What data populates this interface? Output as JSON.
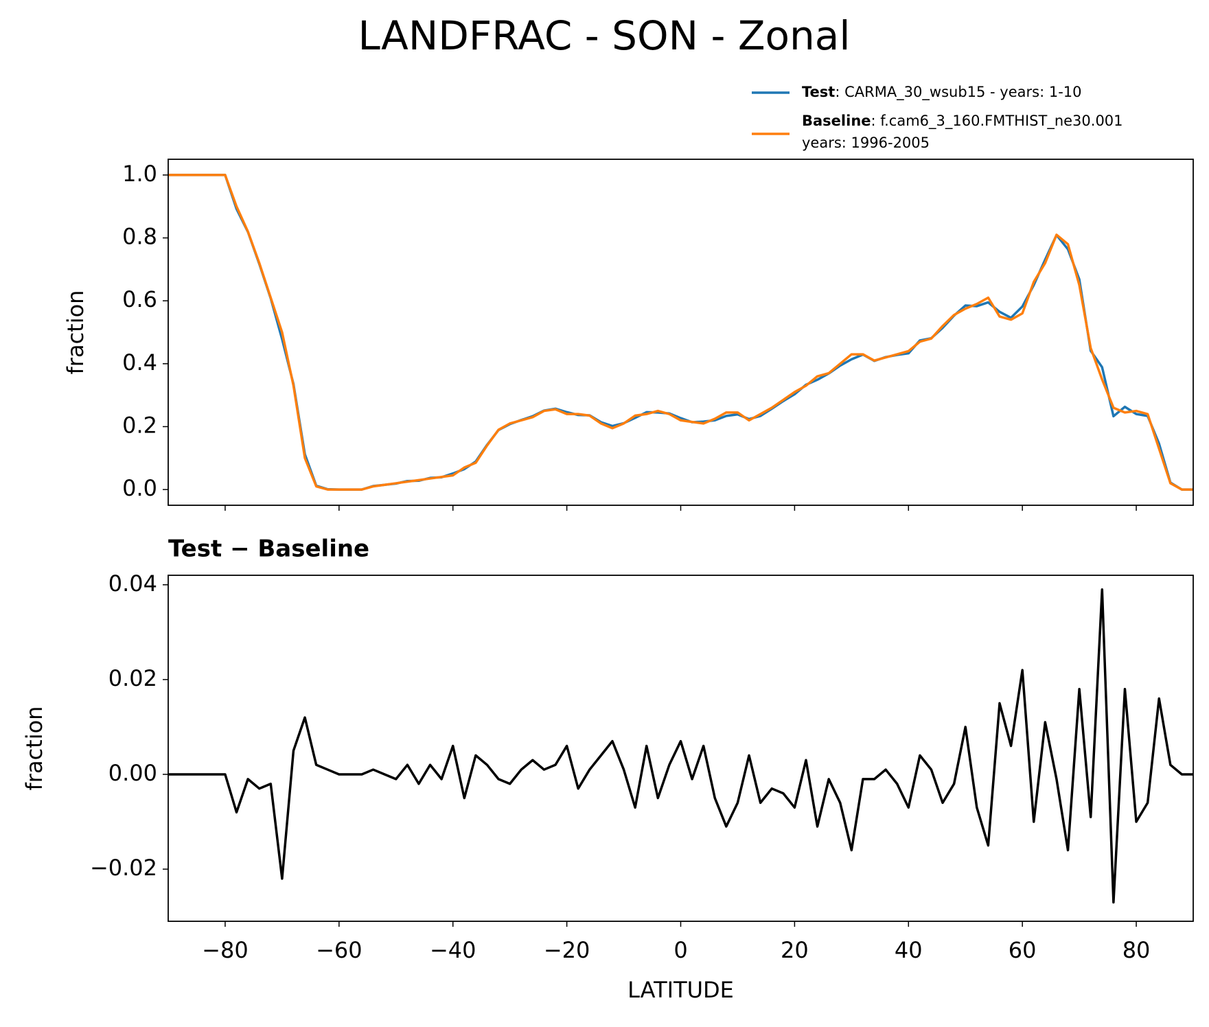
{
  "chart_data": [
    {
      "type": "line",
      "title": "LANDFRAC - SON - Zonal",
      "ylabel": "fraction",
      "x": [
        -90,
        -88,
        -86,
        -84,
        -82,
        -80,
        -78,
        -76,
        -74,
        -72,
        -70,
        -68,
        -66,
        -64,
        -62,
        -60,
        -58,
        -56,
        -54,
        -52,
        -50,
        -48,
        -46,
        -44,
        -42,
        -40,
        -38,
        -36,
        -34,
        -32,
        -30,
        -28,
        -26,
        -24,
        -22,
        -20,
        -18,
        -16,
        -14,
        -12,
        -10,
        -8,
        -6,
        -4,
        -2,
        0,
        2,
        4,
        6,
        8,
        10,
        12,
        14,
        16,
        18,
        20,
        22,
        24,
        26,
        28,
        30,
        32,
        34,
        36,
        38,
        40,
        42,
        44,
        46,
        48,
        50,
        52,
        54,
        56,
        58,
        60,
        62,
        64,
        66,
        68,
        70,
        72,
        74,
        76,
        78,
        80,
        82,
        84,
        86,
        88,
        90
      ],
      "series": [
        {
          "name": "Test",
          "legend_text": [
            ": CARMA_30_wsub15 - years: 1-10"
          ],
          "color": "#1f77b4",
          "values": [
            1,
            1,
            1,
            1,
            1,
            1,
            0.892,
            0.819,
            0.717,
            0.608,
            0.478,
            0.335,
            0.112,
            0.012,
            0.001,
            0,
            0,
            0,
            0.011,
            0.015,
            0.019,
            0.027,
            0.028,
            0.037,
            0.039,
            0.051,
            0.065,
            0.089,
            0.142,
            0.189,
            0.208,
            0.221,
            0.233,
            0.251,
            0.257,
            0.246,
            0.237,
            0.236,
            0.214,
            0.202,
            0.211,
            0.228,
            0.246,
            0.245,
            0.242,
            0.227,
            0.214,
            0.216,
            0.22,
            0.234,
            0.239,
            0.224,
            0.234,
            0.257,
            0.281,
            0.303,
            0.333,
            0.349,
            0.369,
            0.394,
            0.414,
            0.429,
            0.409,
            0.421,
            0.428,
            0.433,
            0.474,
            0.481,
            0.514,
            0.553,
            0.585,
            0.583,
            0.595,
            0.565,
            0.546,
            0.582,
            0.65,
            0.731,
            0.809,
            0.764,
            0.668,
            0.441,
            0.389,
            0.233,
            0.263,
            0.24,
            0.234,
            0.146,
            0.022,
            0,
            0
          ]
        },
        {
          "name": "Baseline",
          "legend_text": [
            ": f.cam6_3_160.FMTHIST_ne30.001",
            "years: 1996-2005"
          ],
          "color": "#ff7f0e",
          "values": [
            1,
            1,
            1,
            1,
            1,
            1,
            0.9,
            0.82,
            0.72,
            0.61,
            0.5,
            0.33,
            0.1,
            0.01,
            0,
            0,
            0,
            0,
            0.01,
            0.015,
            0.02,
            0.025,
            0.03,
            0.035,
            0.04,
            0.045,
            0.07,
            0.085,
            0.14,
            0.19,
            0.21,
            0.22,
            0.23,
            0.25,
            0.255,
            0.24,
            0.24,
            0.235,
            0.21,
            0.195,
            0.21,
            0.235,
            0.24,
            0.25,
            0.24,
            0.22,
            0.215,
            0.21,
            0.225,
            0.245,
            0.245,
            0.22,
            0.24,
            0.26,
            0.285,
            0.31,
            0.33,
            0.36,
            0.37,
            0.4,
            0.43,
            0.43,
            0.41,
            0.42,
            0.43,
            0.44,
            0.47,
            0.48,
            0.52,
            0.555,
            0.575,
            0.59,
            0.61,
            0.55,
            0.54,
            0.56,
            0.66,
            0.72,
            0.81,
            0.78,
            0.65,
            0.45,
            0.35,
            0.26,
            0.245,
            0.25,
            0.24,
            0.13,
            0.02,
            0,
            0
          ]
        }
      ],
      "xlim": [
        -90,
        90
      ],
      "xticks": [
        -80,
        -60,
        -40,
        -20,
        0,
        20,
        40,
        60,
        80
      ],
      "ylim": [
        -0.05,
        1.05
      ],
      "yticks": [
        {
          "value": 0,
          "label": "0.0"
        },
        0.2,
        0.4,
        0.6,
        0.8,
        {
          "value": 1,
          "label": "1.0"
        }
      ]
    },
    {
      "type": "line",
      "title": "Test − Baseline",
      "ylabel": "fraction",
      "xlabel": "LATITUDE",
      "x": [
        -90,
        -88,
        -86,
        -84,
        -82,
        -80,
        -78,
        -76,
        -74,
        -72,
        -70,
        -68,
        -66,
        -64,
        -62,
        -60,
        -58,
        -56,
        -54,
        -52,
        -50,
        -48,
        -46,
        -44,
        -42,
        -40,
        -38,
        -36,
        -34,
        -32,
        -30,
        -28,
        -26,
        -24,
        -22,
        -20,
        -18,
        -16,
        -14,
        -12,
        -10,
        -8,
        -6,
        -4,
        -2,
        0,
        2,
        4,
        6,
        8,
        10,
        12,
        14,
        16,
        18,
        20,
        22,
        24,
        26,
        28,
        30,
        32,
        34,
        36,
        38,
        40,
        42,
        44,
        46,
        48,
        50,
        52,
        54,
        56,
        58,
        60,
        62,
        64,
        66,
        68,
        70,
        72,
        74,
        76,
        78,
        80,
        82,
        84,
        86,
        88,
        90
      ],
      "series": [
        {
          "color": "#000000",
          "values": [
            0,
            0,
            0,
            0,
            0,
            0,
            -0.008,
            -0.001,
            -0.003,
            -0.002,
            -0.022,
            0.005,
            0.012,
            0.002,
            0.001,
            0,
            0,
            0,
            0.001,
            0,
            -0.001,
            0.002,
            -0.002,
            0.002,
            -0.001,
            0.006,
            -0.005,
            0.004,
            0.002,
            -0.001,
            -0.002,
            0.001,
            0.003,
            0.001,
            0.002,
            0.006,
            -0.003,
            0.001,
            0.004,
            0.007,
            0.001,
            -0.007,
            0.006,
            -0.005,
            0.002,
            0.007,
            -0.001,
            0.006,
            -0.005,
            -0.011,
            -0.006,
            0.004,
            -0.006,
            -0.003,
            -0.004,
            -0.007,
            0.003,
            -0.011,
            -0.001,
            -0.006,
            -0.016,
            -0.001,
            -0.001,
            0.001,
            -0.002,
            -0.007,
            0.004,
            0.001,
            -0.006,
            -0.002,
            0.01,
            -0.007,
            -0.015,
            0.015,
            0.006,
            0.022,
            -0.01,
            0.011,
            -0.001,
            -0.016,
            0.018,
            -0.009,
            0.039,
            -0.027,
            0.018,
            -0.01,
            -0.006,
            0.016,
            0.002,
            0,
            0
          ]
        }
      ],
      "xlim": [
        -90,
        90
      ],
      "xticks": [
        {
          "value": -80,
          "label": "−80"
        },
        {
          "value": -60,
          "label": "−60"
        },
        {
          "value": -40,
          "label": "−40"
        },
        {
          "value": -20,
          "label": "−20"
        },
        0,
        20,
        40,
        60,
        80
      ],
      "ylim": [
        -0.031,
        0.042
      ],
      "yticks": [
        {
          "value": -0.02,
          "label": "−0.02"
        },
        {
          "value": 0,
          "label": "0.00"
        },
        0.02,
        0.04
      ]
    }
  ]
}
